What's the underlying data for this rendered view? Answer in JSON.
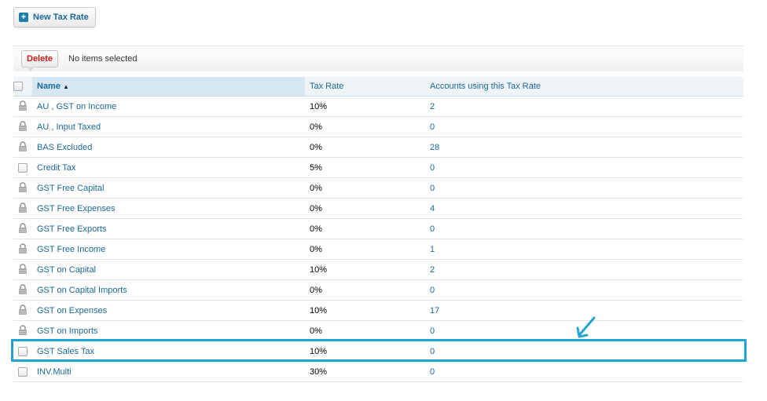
{
  "header": {
    "new_button_label": "New Tax Rate"
  },
  "toolbar": {
    "delete_label": "Delete",
    "selection_status": "No items selected"
  },
  "table": {
    "columns": {
      "name": "Name",
      "tax_rate": "Tax Rate",
      "accounts": "Accounts using this Tax Rate"
    },
    "sort": {
      "column": "name",
      "direction": "ascending"
    },
    "rows": [
      {
        "name": "AU , GST on Income",
        "rate": "10%",
        "accounts": "2",
        "locked": true
      },
      {
        "name": "AU , Input Taxed",
        "rate": "0%",
        "accounts": "0",
        "locked": true
      },
      {
        "name": "BAS Excluded",
        "rate": "0%",
        "accounts": "28",
        "locked": true
      },
      {
        "name": "Credit Tax",
        "rate": "5%",
        "accounts": "0",
        "locked": false
      },
      {
        "name": "GST Free Capital",
        "rate": "0%",
        "accounts": "0",
        "locked": true
      },
      {
        "name": "GST Free Expenses",
        "rate": "0%",
        "accounts": "4",
        "locked": true
      },
      {
        "name": "GST Free Exports",
        "rate": "0%",
        "accounts": "0",
        "locked": true
      },
      {
        "name": "GST Free Income",
        "rate": "0%",
        "accounts": "1",
        "locked": true
      },
      {
        "name": "GST on Capital",
        "rate": "10%",
        "accounts": "2",
        "locked": true
      },
      {
        "name": "GST on Capital Imports",
        "rate": "0%",
        "accounts": "0",
        "locked": true
      },
      {
        "name": "GST on Expenses",
        "rate": "10%",
        "accounts": "17",
        "locked": true
      },
      {
        "name": "GST on Imports",
        "rate": "0%",
        "accounts": "0",
        "locked": true
      },
      {
        "name": "GST Sales Tax",
        "rate": "10%",
        "accounts": "0",
        "locked": false
      },
      {
        "name": "INV.Multi",
        "rate": "30%",
        "accounts": "0",
        "locked": false
      }
    ]
  },
  "icons": {
    "new": "plus-icon",
    "locked_row": "lock-icon",
    "annotation": "arrow-icon"
  },
  "colors": {
    "link": "#1a6996",
    "delete": "#c11b17",
    "highlight": "#25a3d3",
    "header_sorted": "#d6e7f4"
  }
}
